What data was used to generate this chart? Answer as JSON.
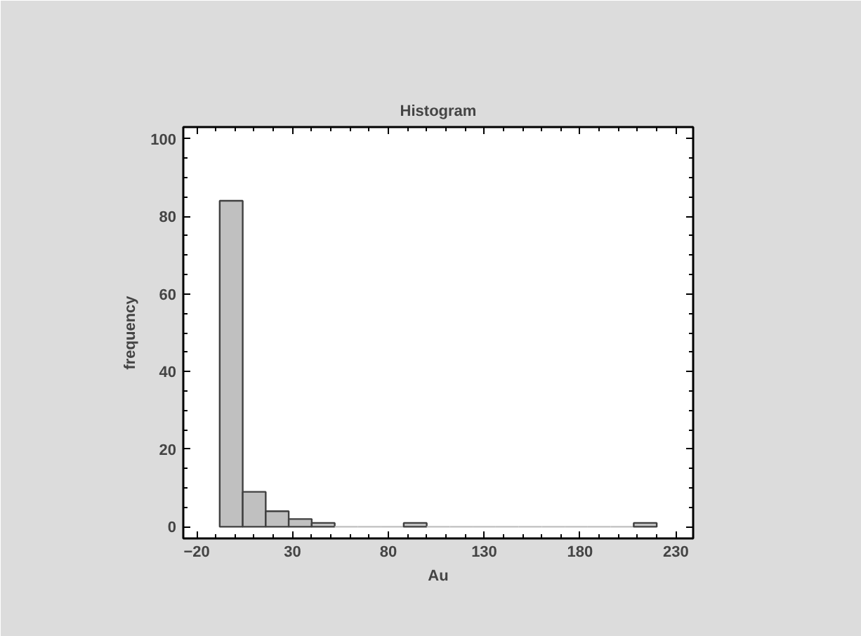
{
  "chart_data": {
    "type": "histogram",
    "title": "Histogram",
    "xlabel": "Au",
    "ylabel": "frequency",
    "bins": [
      -8,
      4,
      16,
      28,
      40,
      52,
      64,
      76,
      88,
      100,
      112,
      124,
      136,
      148,
      160,
      172,
      184,
      196,
      208,
      220
    ],
    "values": [
      84,
      9,
      4,
      2,
      1,
      0,
      0,
      0,
      1,
      0,
      0,
      0,
      0,
      0,
      0,
      0,
      0,
      0,
      1
    ],
    "color": "#c0c0c0",
    "xlim": [
      -27,
      239
    ],
    "ylim": [
      -3,
      103
    ],
    "xticks": [
      -20,
      30,
      80,
      130,
      180,
      230
    ],
    "yticks": [
      0,
      20,
      40,
      60,
      80,
      100
    ],
    "grid": false
  }
}
